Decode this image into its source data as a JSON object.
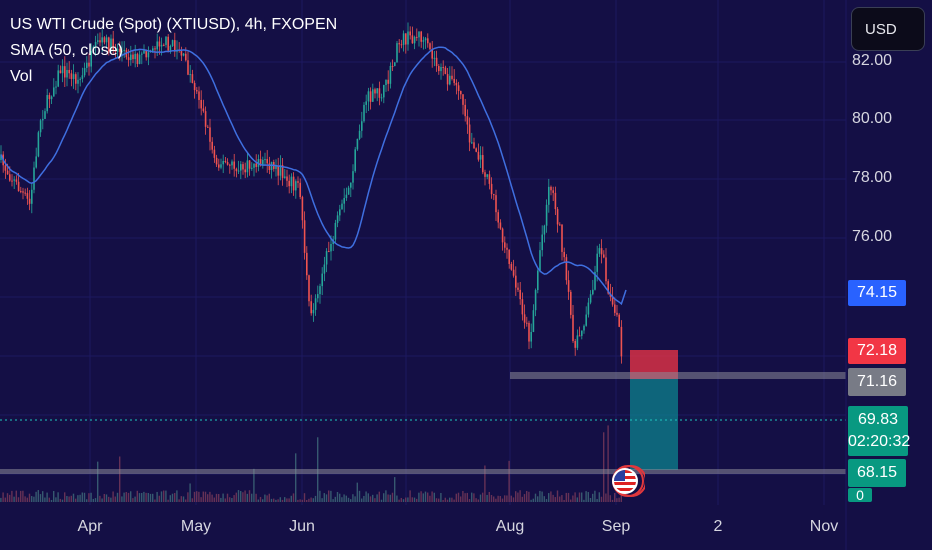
{
  "legend": {
    "symbol": "US WTI Crude (Spot) (XTIUSD), 4h, FXOPEN",
    "sma": "SMA (50, close)",
    "vol": "Vol"
  },
  "currency_button": "USD",
  "price_axis": {
    "ticks": [
      "82.00",
      "80.00",
      "78.00",
      "76.00"
    ]
  },
  "price_labels": {
    "sma_value": "74.15",
    "stop_loss": "72.18",
    "entry": "71.16",
    "last_price": "69.83",
    "countdown": "02:20:32",
    "take_profit": "68.15",
    "volume": "0"
  },
  "time_axis": {
    "ticks": [
      "Apr",
      "May",
      "Jun",
      "Aug",
      "Sep",
      "2",
      "Nov"
    ]
  },
  "colors": {
    "background": "#140f45",
    "sma_line": "#3f6fe0",
    "up_candle": "#26a69a",
    "down_candle": "#ef5350",
    "sma_badge": "#2962ff",
    "stop_badge": "#f23645",
    "entry_badge": "#787b86",
    "last_badge": "#089981"
  }
}
